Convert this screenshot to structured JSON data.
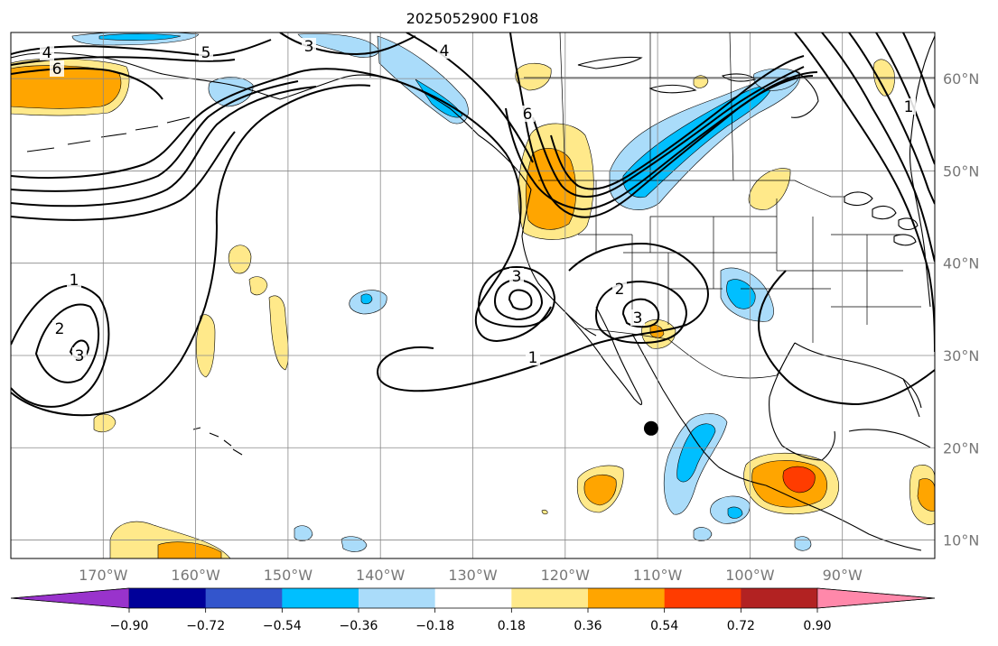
{
  "title": "2025052900 F108",
  "map": {
    "longitude_labels": [
      "170°W",
      "160°W",
      "150°W",
      "140°W",
      "130°W",
      "120°W",
      "110°W",
      "100°W",
      "90°W"
    ],
    "latitude_labels": [
      "60°N",
      "50°N",
      "40°N",
      "30°N",
      "20°N",
      "10°N"
    ],
    "lon_range": [
      -180,
      -80
    ],
    "lat_range": [
      8,
      65
    ],
    "grid": true,
    "contour_labels": [
      "4",
      "5",
      "6",
      "3",
      "4",
      "6",
      "1",
      "2",
      "3",
      "3",
      "2",
      "3",
      "1",
      "1"
    ],
    "marker": {
      "lon": -110.7,
      "lat": 22.1,
      "shape": "filled-circle",
      "color": "#000000"
    }
  },
  "colorbar": {
    "tick_labels": [
      "−0.90",
      "−0.72",
      "−0.54",
      "−0.36",
      "−0.18",
      "0.18",
      "0.36",
      "0.54",
      "0.72",
      "0.90"
    ],
    "colors": [
      "#9933cc",
      "#000099",
      "#3355cc",
      "#00bfff",
      "#aadcfa",
      "#ffffff",
      "#ffe98a",
      "#ffa500",
      "#ff3c00",
      "#b22222",
      "#ff88aa"
    ]
  },
  "fill_colors": {
    "light_blue": "#aadcfa",
    "blue": "#00bfff",
    "yellow": "#ffe98a",
    "orange": "#ffa500",
    "red": "#ff3c00"
  }
}
